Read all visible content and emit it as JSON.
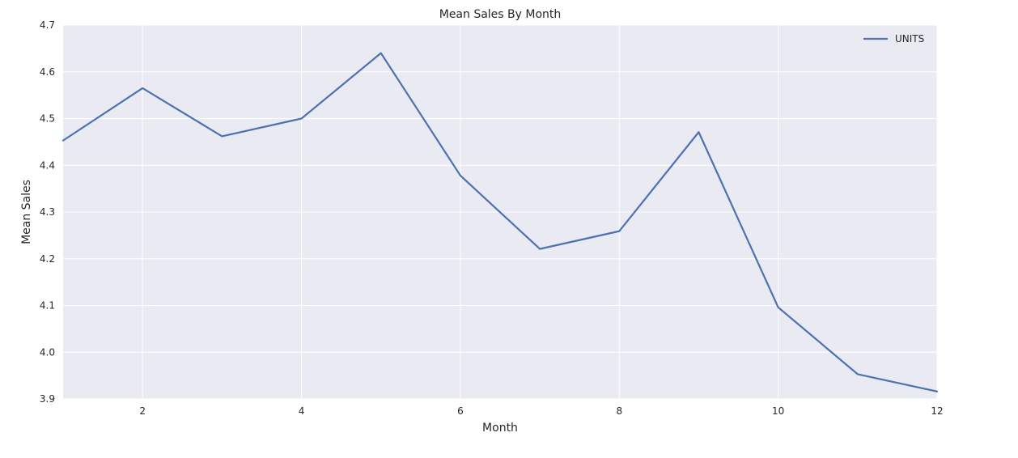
{
  "chart_data": {
    "type": "line",
    "title": "Mean Sales By Month",
    "xlabel": "Month",
    "ylabel": "Mean Sales",
    "x": [
      1,
      2,
      3,
      4,
      5,
      6,
      7,
      8,
      9,
      10,
      11,
      12
    ],
    "series": [
      {
        "name": "UNITS",
        "values": [
          4.453,
          4.565,
          4.462,
          4.5,
          4.64,
          4.378,
          4.221,
          4.259,
          4.471,
          4.096,
          3.953,
          3.916
        ],
        "color": "#4c72b0"
      }
    ],
    "xlim": [
      1,
      12
    ],
    "ylim": [
      3.9,
      4.7
    ],
    "xticks": [
      "2",
      "4",
      "6",
      "8",
      "10",
      "12"
    ],
    "yticks": [
      "3.9",
      "4.0",
      "4.1",
      "4.2",
      "4.3",
      "4.4",
      "4.5",
      "4.6",
      "4.7"
    ],
    "grid": true,
    "legend_position": "top-right",
    "plot_background": "#eaeaf2",
    "grid_color": "#ffffff"
  }
}
